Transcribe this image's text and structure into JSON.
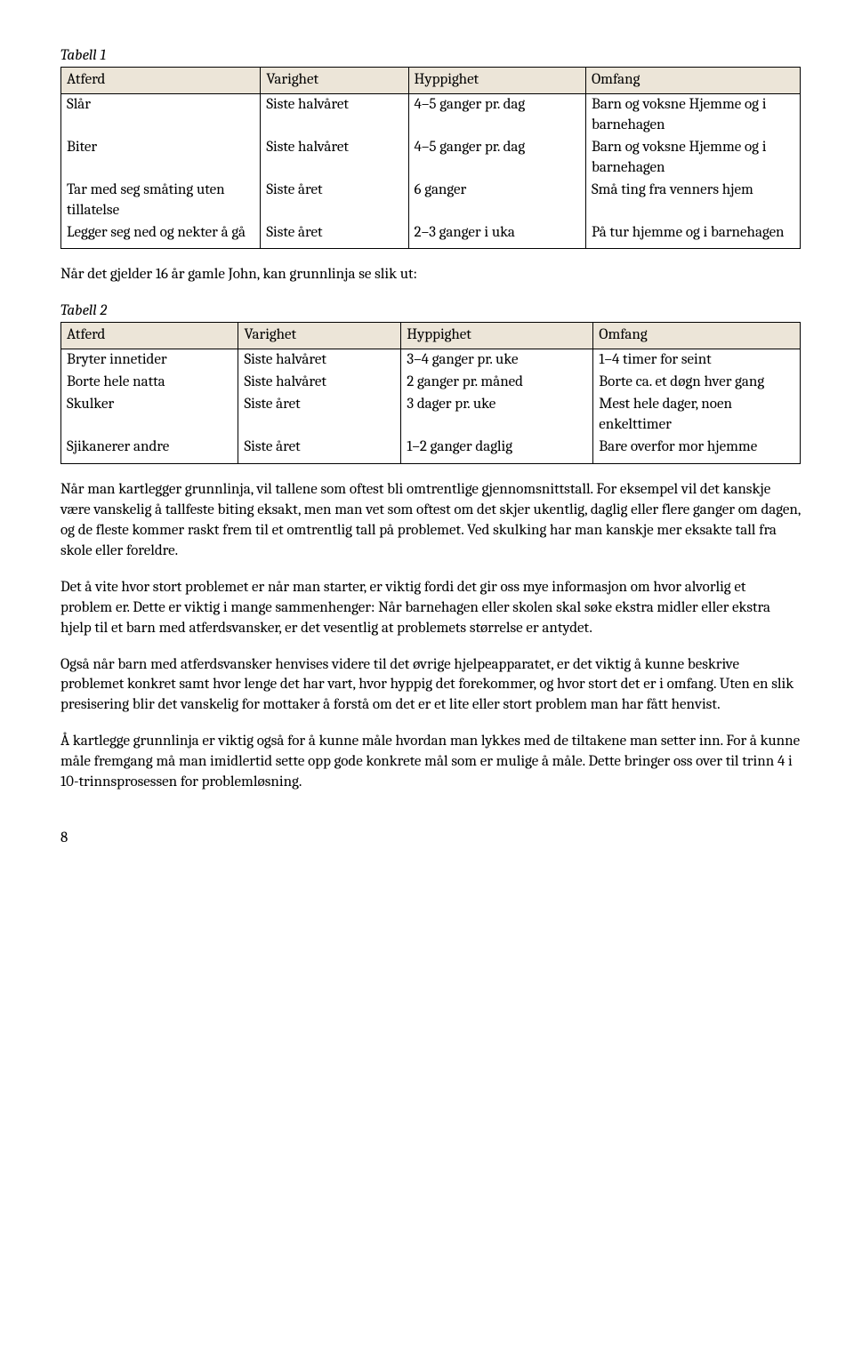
{
  "table1": {
    "caption": "Tabell 1",
    "headers": [
      "Atferd",
      "Varighet",
      "Hyppighet",
      "Omfang"
    ],
    "rows": [
      {
        "c1": "Slår",
        "c2": "Siste halvåret",
        "c3": "4–5 ganger pr. dag",
        "c4": "Barn og voksne Hjemme og i barnehagen"
      },
      {
        "c1": "Biter",
        "c2": "Siste halvåret",
        "c3": "4–5 ganger pr. dag",
        "c4": "Barn og voksne Hjemme og i barnehagen"
      },
      {
        "c1": "Tar med seg småting uten tillatelse",
        "c2": "Siste året",
        "c3": "6 ganger",
        "c4": "Små ting fra venners hjem"
      },
      {
        "c1": "Legger seg ned og nekter å gå",
        "c2": "Siste året",
        "c3": "2–3 ganger i uka",
        "c4": "På tur hjemme og i barnehagen"
      }
    ]
  },
  "midline": "Når det gjelder 16 år gamle John, kan grunnlinja se slik ut:",
  "table2": {
    "caption": "Tabell 2",
    "headers": [
      "Atferd",
      "Varighet",
      "Hyppighet",
      "Omfang"
    ],
    "rows": [
      {
        "c1": "Bryter innetider",
        "c2": "Siste halvåret",
        "c3": "3–4 ganger pr. uke",
        "c4": "1–4 timer for seint"
      },
      {
        "c1": "Borte hele natta",
        "c2": "Siste halvåret",
        "c3": "2 ganger pr. måned",
        "c4": "Borte ca. et døgn hver gang"
      },
      {
        "c1": "Skulker",
        "c2": "Siste året",
        "c3": "3 dager pr. uke",
        "c4": "Mest hele dager, noen enkelttimer"
      },
      {
        "c1": "Sjikanerer andre",
        "c2": "Siste året",
        "c3": "1–2 ganger daglig",
        "c4": "Bare overfor mor hjemme"
      }
    ]
  },
  "paragraphs": {
    "p1": "Når man kartlegger grunnlinja, vil tallene som oftest bli omtrentlige gjennomsnittstall. For eksempel vil det kanskje være vanskelig å tallfeste biting eksakt, men man vet som oftest om det skjer ukentlig, daglig eller flere ganger om dagen, og de fleste kommer raskt frem til et omtrentlig tall på problemet. Ved skulking har man kanskje mer eksakte tall fra skole eller foreldre.",
    "p2": "Det å vite hvor stort problemet er når man starter, er viktig fordi det gir oss mye informasjon om hvor alvorlig et problem er. Dette er viktig i mange sammenhenger: Når barnehagen eller skolen skal søke ekstra midler eller ekstra hjelp til et barn med atferdsvansker, er det vesentlig at problemets størrelse er antydet.",
    "p3": "Også når barn med atferdsvansker henvises videre til det øvrige hjelpeapparatet, er det viktig å kunne beskrive problemet konkret samt hvor lenge det har vart, hvor hyppig det forekommer, og hvor stort det er i omfang. Uten en slik presisering blir det vanskelig for mottaker å forstå om det er et lite eller stort problem man har fått henvist.",
    "p4": "Å kartlegge grunnlinja er viktig også for å kunne måle hvordan man lykkes med de tiltakene man setter inn. For å kunne måle fremgang må man imidlertid sette opp gode konkrete mål som er mulige å måle. Dette bringer oss over til trinn 4 i 10-trinnsprosessen for problemløsning."
  },
  "pageNumber": "8"
}
